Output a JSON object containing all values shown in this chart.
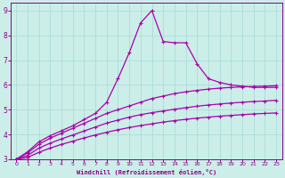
{
  "xlabel": "Windchill (Refroidissement éolien,°C)",
  "bg_color": "#cceee8",
  "line_color": "#aa00aa",
  "grid_color": "#aaddda",
  "axis_color": "#880088",
  "text_color": "#880088",
  "xlim": [
    -0.5,
    23.5
  ],
  "ylim": [
    3,
    9.3
  ],
  "xticks": [
    0,
    1,
    2,
    3,
    4,
    5,
    6,
    7,
    8,
    9,
    10,
    11,
    12,
    13,
    14,
    15,
    16,
    17,
    18,
    19,
    20,
    21,
    22,
    23
  ],
  "yticks": [
    3,
    4,
    5,
    6,
    7,
    8,
    9
  ],
  "curve_peak_x": [
    0,
    1,
    2,
    3,
    4,
    5,
    6,
    7,
    8,
    9,
    10,
    11,
    12,
    13,
    14,
    15,
    16,
    17,
    18,
    19,
    20,
    21,
    22,
    23
  ],
  "curve_peak_y": [
    3.0,
    3.3,
    3.7,
    3.95,
    4.15,
    4.35,
    4.6,
    4.85,
    5.3,
    6.25,
    7.3,
    8.5,
    9.0,
    7.75,
    7.7,
    7.7,
    6.85,
    6.25,
    6.1,
    6.0,
    5.95,
    5.9,
    5.9,
    5.9
  ],
  "curve_upper_x": [
    0,
    1,
    2,
    3,
    4,
    5,
    6,
    7,
    8,
    9,
    10,
    11,
    12,
    13,
    14,
    15,
    16,
    17,
    18,
    19,
    20,
    21,
    22,
    23
  ],
  "curve_upper_y": [
    3.0,
    3.25,
    3.6,
    3.85,
    4.05,
    4.25,
    4.45,
    4.65,
    4.85,
    5.0,
    5.15,
    5.3,
    5.45,
    5.55,
    5.65,
    5.72,
    5.78,
    5.83,
    5.87,
    5.9,
    5.92,
    5.94,
    5.95,
    5.97
  ],
  "curve_mid_x": [
    0,
    1,
    2,
    3,
    4,
    5,
    6,
    7,
    8,
    9,
    10,
    11,
    12,
    13,
    14,
    15,
    16,
    17,
    18,
    19,
    20,
    21,
    22,
    23
  ],
  "curve_mid_y": [
    3.0,
    3.15,
    3.45,
    3.65,
    3.82,
    3.98,
    4.14,
    4.3,
    4.46,
    4.58,
    4.7,
    4.8,
    4.88,
    4.95,
    5.02,
    5.08,
    5.14,
    5.19,
    5.23,
    5.27,
    5.3,
    5.33,
    5.35,
    5.38
  ],
  "curve_lower_x": [
    0,
    1,
    2,
    3,
    4,
    5,
    6,
    7,
    8,
    9,
    10,
    11,
    12,
    13,
    14,
    15,
    16,
    17,
    18,
    19,
    20,
    21,
    22,
    23
  ],
  "curve_lower_y": [
    3.0,
    3.07,
    3.28,
    3.45,
    3.6,
    3.73,
    3.86,
    3.98,
    4.09,
    4.19,
    4.28,
    4.36,
    4.43,
    4.5,
    4.56,
    4.61,
    4.66,
    4.7,
    4.74,
    4.77,
    4.8,
    4.83,
    4.85,
    4.87
  ]
}
